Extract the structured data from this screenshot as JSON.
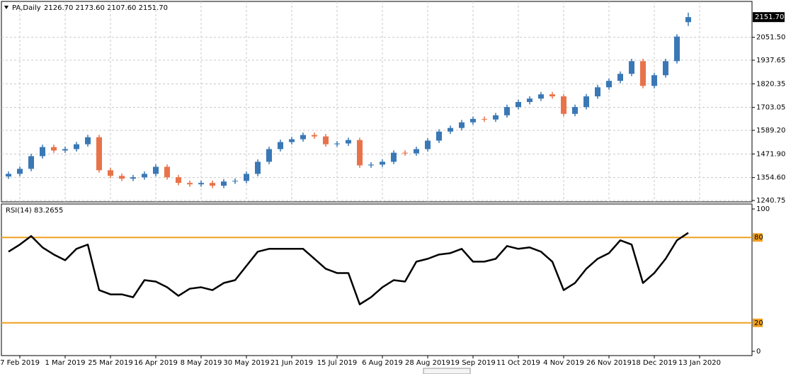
{
  "chart_data": [
    {
      "type": "candlestick",
      "symbol": "PA,Daily",
      "ohlc_text": "2126.70 2173.60 2107.60 2151.70",
      "up_color": "#3a78b5",
      "down_color": "#e8734a",
      "grid": true,
      "x": [
        0,
        1,
        2,
        3,
        4,
        5,
        6,
        7,
        8,
        9,
        10,
        11,
        12,
        13,
        14,
        15,
        16,
        17,
        18,
        19,
        20,
        21,
        22,
        23,
        24,
        25,
        26,
        27,
        28,
        29,
        30,
        31,
        32,
        33,
        34,
        35,
        36,
        37,
        38,
        39,
        40,
        41,
        42,
        43,
        44,
        45,
        46,
        47,
        48,
        49,
        50,
        51,
        52,
        53,
        54,
        55,
        56,
        57,
        58,
        59,
        60
      ],
      "open": [
        1360,
        1373,
        1398,
        1461,
        1506,
        1489,
        1496,
        1520,
        1555,
        1391,
        1363,
        1349,
        1356,
        1373,
        1408,
        1356,
        1328,
        1321,
        1328,
        1314,
        1335,
        1338,
        1373,
        1433,
        1496,
        1531,
        1545,
        1566,
        1559,
        1520,
        1524,
        1541,
        1415,
        1419,
        1433,
        1478,
        1475,
        1496,
        1538,
        1583,
        1601,
        1629,
        1646,
        1643,
        1664,
        1705,
        1730,
        1747,
        1768,
        1758,
        1671,
        1705,
        1758,
        1803,
        1835,
        1870,
        1933,
        1810,
        1863,
        1933,
        2126.7
      ],
      "high": [
        1385,
        1410,
        1473,
        1518,
        1518,
        1508,
        1532,
        1567,
        1567,
        1403,
        1375,
        1368,
        1385,
        1420,
        1420,
        1368,
        1340,
        1340,
        1340,
        1347,
        1350,
        1385,
        1445,
        1508,
        1543,
        1557,
        1578,
        1578,
        1571,
        1536,
        1553,
        1553,
        1431,
        1445,
        1490,
        1490,
        1508,
        1550,
        1595,
        1613,
        1641,
        1658,
        1658,
        1676,
        1717,
        1742,
        1759,
        1780,
        1780,
        1770,
        1717,
        1770,
        1815,
        1847,
        1882,
        1945,
        1945,
        1875,
        1945,
        2067,
        2173.6
      ],
      "low": [
        1348,
        1361,
        1386,
        1449,
        1477,
        1477,
        1484,
        1508,
        1379,
        1351,
        1337,
        1337,
        1344,
        1361,
        1344,
        1316,
        1309,
        1309,
        1302,
        1302,
        1323,
        1326,
        1361,
        1421,
        1484,
        1519,
        1533,
        1547,
        1508,
        1508,
        1512,
        1403,
        1403,
        1407,
        1421,
        1463,
        1463,
        1484,
        1526,
        1571,
        1589,
        1617,
        1631,
        1631,
        1652,
        1693,
        1718,
        1735,
        1746,
        1659,
        1659,
        1693,
        1746,
        1791,
        1823,
        1858,
        1798,
        1798,
        1851,
        1921,
        2107.6
      ],
      "close": [
        1373,
        1398,
        1461,
        1506,
        1489,
        1496,
        1520,
        1555,
        1391,
        1363,
        1349,
        1356,
        1373,
        1408,
        1356,
        1328,
        1321,
        1328,
        1314,
        1335,
        1338,
        1373,
        1433,
        1496,
        1531,
        1545,
        1566,
        1559,
        1520,
        1524,
        1541,
        1415,
        1419,
        1433,
        1478,
        1475,
        1496,
        1538,
        1583,
        1601,
        1629,
        1646,
        1643,
        1664,
        1705,
        1730,
        1747,
        1768,
        1758,
        1671,
        1705,
        1758,
        1803,
        1835,
        1870,
        1933,
        1810,
        1863,
        1933,
        2055,
        2151.7
      ],
      "xlim": [
        -0.625,
        65.625
      ],
      "ylim": [
        1233.8,
        2229.7
      ],
      "current_price": {
        "value": 2151.7,
        "label": "2151.70"
      },
      "yticks": [
        {
          "value": 2051.5,
          "label": "2051.50"
        },
        {
          "value": 1937.65,
          "label": "1937.65"
        },
        {
          "value": 1820.35,
          "label": "1820.35"
        },
        {
          "value": 1703.05,
          "label": "1703.05"
        },
        {
          "value": 1589.2,
          "label": "1589.20"
        },
        {
          "value": 1471.9,
          "label": "1471.90"
        },
        {
          "value": 1354.6,
          "label": "1354.60"
        },
        {
          "value": 1240.75,
          "label": "1240.75"
        }
      ],
      "xticks": [
        {
          "value": 1,
          "label": "7 Feb 2019"
        },
        {
          "value": 5,
          "label": "1 Mar 2019"
        },
        {
          "value": 9,
          "label": "25 Mar 2019"
        },
        {
          "value": 13,
          "label": "16 Apr 2019"
        },
        {
          "value": 17,
          "label": "8 May 2019"
        },
        {
          "value": 21,
          "label": "30 May 2019"
        },
        {
          "value": 25,
          "label": "21 Jun 2019"
        },
        {
          "value": 29,
          "label": "15 Jul 2019"
        },
        {
          "value": 33,
          "label": "6 Aug 2019"
        },
        {
          "value": 37,
          "label": "28 Aug 2019"
        },
        {
          "value": 41,
          "label": "19 Sep 2019"
        },
        {
          "value": 45,
          "label": "11 Oct 2019"
        },
        {
          "value": 49,
          "label": "4 Nov 2019"
        },
        {
          "value": 53,
          "label": "26 Nov 2019"
        },
        {
          "value": 57,
          "label": "18 Dec 2019"
        },
        {
          "value": 61,
          "label": "13 Jan 2020"
        }
      ]
    },
    {
      "type": "line",
      "title": "RSI(14) 83.2655",
      "color": "#000000",
      "level_color": "#f0a020",
      "x": [
        0,
        1,
        2,
        3,
        4,
        5,
        6,
        7,
        8,
        9,
        10,
        11,
        12,
        13,
        14,
        15,
        16,
        17,
        18,
        19,
        20,
        21,
        22,
        23,
        24,
        25,
        26,
        27,
        28,
        29,
        30,
        31,
        32,
        33,
        34,
        35,
        36,
        37,
        38,
        39,
        40,
        41,
        42,
        43,
        44,
        45,
        46,
        47,
        48,
        49,
        50,
        51,
        52,
        53,
        54,
        55,
        56,
        57,
        58,
        59,
        60
      ],
      "values": [
        70,
        75,
        81,
        73,
        68,
        64,
        72,
        75,
        43,
        40,
        40,
        38,
        50,
        49,
        45,
        39,
        44,
        45,
        43,
        48,
        50,
        60,
        70,
        72,
        72,
        72,
        72,
        65,
        58,
        55,
        55,
        33,
        38,
        45,
        50,
        49,
        63,
        65,
        68,
        69,
        72,
        63,
        63,
        65,
        74,
        72,
        73,
        70,
        63,
        43,
        48,
        58,
        65,
        69,
        78,
        75,
        48,
        55,
        65,
        78,
        83.2655
      ],
      "xlim": [
        -0.625,
        65.625
      ],
      "ylim": [
        -3,
        103.5
      ],
      "yticks": [
        100,
        0
      ],
      "levels": [
        80,
        20
      ]
    }
  ]
}
